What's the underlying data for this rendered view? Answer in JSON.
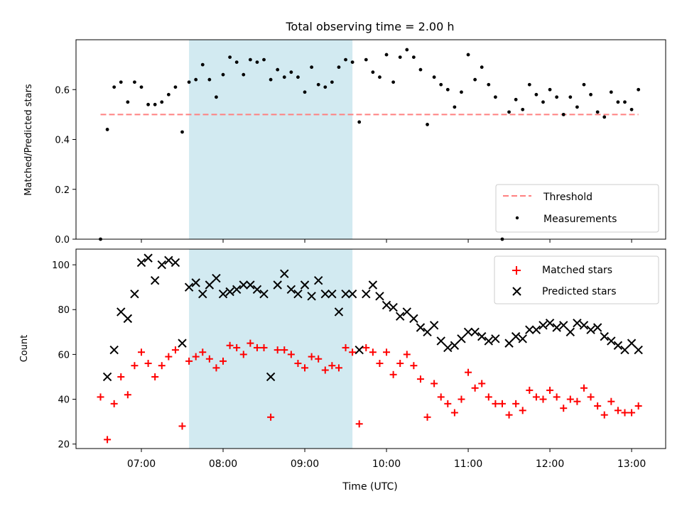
{
  "figure": {
    "title": "Total observing time = 2.00 h"
  },
  "chart_data": [
    {
      "type": "scatter",
      "panel": "top",
      "ylabel": "Matched/Predicted stars",
      "xlabel": "",
      "xlim": [
        "06:12",
        "13:25"
      ],
      "ylim": [
        0,
        0.8
      ],
      "yticks": [
        "0.0",
        "0.2",
        "0.4",
        "0.6"
      ],
      "ytick_values": [
        0.0,
        0.2,
        0.4,
        0.6
      ],
      "highlight_span": {
        "start": "07:35",
        "end": "09:35",
        "color": "#add8e6"
      },
      "threshold": {
        "name": "Threshold",
        "value": 0.5,
        "x_start": "06:30",
        "x_end": "13:05",
        "color": "#ff8080",
        "style": "dashed"
      },
      "legend": {
        "placement": "lower right",
        "entries": [
          "Threshold",
          "Measurements"
        ]
      },
      "series": [
        {
          "name": "Measurements",
          "marker": "dot",
          "color": "#000000",
          "points": [
            [
              "06:30",
              0.0
            ],
            [
              "06:35",
              0.44
            ],
            [
              "06:40",
              0.61
            ],
            [
              "06:45",
              0.63
            ],
            [
              "06:50",
              0.55
            ],
            [
              "06:55",
              0.63
            ],
            [
              "07:00",
              0.61
            ],
            [
              "07:05",
              0.54
            ],
            [
              "07:10",
              0.54
            ],
            [
              "07:15",
              0.55
            ],
            [
              "07:20",
              0.58
            ],
            [
              "07:25",
              0.61
            ],
            [
              "07:30",
              0.43
            ],
            [
              "07:35",
              0.63
            ],
            [
              "07:40",
              0.64
            ],
            [
              "07:45",
              0.7
            ],
            [
              "07:50",
              0.64
            ],
            [
              "07:55",
              0.57
            ],
            [
              "08:00",
              0.66
            ],
            [
              "08:05",
              0.73
            ],
            [
              "08:10",
              0.71
            ],
            [
              "08:15",
              0.66
            ],
            [
              "08:20",
              0.72
            ],
            [
              "08:25",
              0.71
            ],
            [
              "08:30",
              0.72
            ],
            [
              "08:35",
              0.64
            ],
            [
              "08:40",
              0.68
            ],
            [
              "08:45",
              0.65
            ],
            [
              "08:50",
              0.67
            ],
            [
              "08:55",
              0.65
            ],
            [
              "09:00",
              0.59
            ],
            [
              "09:05",
              0.69
            ],
            [
              "09:10",
              0.62
            ],
            [
              "09:15",
              0.61
            ],
            [
              "09:20",
              0.63
            ],
            [
              "09:25",
              0.69
            ],
            [
              "09:30",
              0.72
            ],
            [
              "09:35",
              0.71
            ],
            [
              "09:40",
              0.47
            ],
            [
              "09:45",
              0.72
            ],
            [
              "09:50",
              0.67
            ],
            [
              "09:55",
              0.65
            ],
            [
              "10:00",
              0.74
            ],
            [
              "10:05",
              0.63
            ],
            [
              "10:10",
              0.73
            ],
            [
              "10:15",
              0.76
            ],
            [
              "10:20",
              0.73
            ],
            [
              "10:25",
              0.68
            ],
            [
              "10:30",
              0.46
            ],
            [
              "10:35",
              0.65
            ],
            [
              "10:40",
              0.62
            ],
            [
              "10:45",
              0.6
            ],
            [
              "10:50",
              0.53
            ],
            [
              "10:55",
              0.59
            ],
            [
              "11:00",
              0.74
            ],
            [
              "11:05",
              0.64
            ],
            [
              "11:10",
              0.69
            ],
            [
              "11:15",
              0.62
            ],
            [
              "11:20",
              0.57
            ],
            [
              "11:25",
              0.0
            ],
            [
              "11:30",
              0.51
            ],
            [
              "11:35",
              0.56
            ],
            [
              "11:40",
              0.52
            ],
            [
              "11:45",
              0.62
            ],
            [
              "11:50",
              0.58
            ],
            [
              "11:55",
              0.55
            ],
            [
              "12:00",
              0.6
            ],
            [
              "12:05",
              0.57
            ],
            [
              "12:10",
              0.5
            ],
            [
              "12:15",
              0.57
            ],
            [
              "12:20",
              0.53
            ],
            [
              "12:25",
              0.62
            ],
            [
              "12:30",
              0.58
            ],
            [
              "12:35",
              0.51
            ],
            [
              "12:40",
              0.49
            ],
            [
              "12:45",
              0.59
            ],
            [
              "12:50",
              0.55
            ],
            [
              "12:55",
              0.55
            ],
            [
              "13:00",
              0.52
            ],
            [
              "13:05",
              0.6
            ]
          ]
        }
      ]
    },
    {
      "type": "scatter",
      "panel": "bottom",
      "ylabel": "Count",
      "xlabel": "Time (UTC)",
      "xlim": [
        "06:12",
        "13:25"
      ],
      "ylim": [
        18,
        107
      ],
      "yticks": [
        "20",
        "40",
        "60",
        "80",
        "100"
      ],
      "ytick_values": [
        20,
        40,
        60,
        80,
        100
      ],
      "xticks": [
        "07:00",
        "08:00",
        "09:00",
        "10:00",
        "11:00",
        "12:00",
        "13:00"
      ],
      "highlight_span": {
        "start": "07:35",
        "end": "09:35",
        "color": "#add8e6"
      },
      "legend": {
        "placement": "upper right",
        "entries": [
          "Matched stars",
          "Predicted stars"
        ]
      },
      "series": [
        {
          "name": "Matched stars",
          "marker": "plus",
          "color": "#ff0000",
          "points": [
            [
              "06:30",
              41
            ],
            [
              "06:35",
              22
            ],
            [
              "06:40",
              38
            ],
            [
              "06:45",
              50
            ],
            [
              "06:50",
              42
            ],
            [
              "06:55",
              55
            ],
            [
              "07:00",
              61
            ],
            [
              "07:05",
              56
            ],
            [
              "07:10",
              50
            ],
            [
              "07:15",
              55
            ],
            [
              "07:20",
              59
            ],
            [
              "07:25",
              62
            ],
            [
              "07:30",
              28
            ],
            [
              "07:35",
              57
            ],
            [
              "07:40",
              59
            ],
            [
              "07:45",
              61
            ],
            [
              "07:50",
              58
            ],
            [
              "07:55",
              54
            ],
            [
              "08:00",
              57
            ],
            [
              "08:05",
              64
            ],
            [
              "08:10",
              63
            ],
            [
              "08:15",
              60
            ],
            [
              "08:20",
              65
            ],
            [
              "08:25",
              63
            ],
            [
              "08:30",
              63
            ],
            [
              "08:35",
              32
            ],
            [
              "08:40",
              62
            ],
            [
              "08:45",
              62
            ],
            [
              "08:50",
              60
            ],
            [
              "08:55",
              56
            ],
            [
              "09:00",
              54
            ],
            [
              "09:05",
              59
            ],
            [
              "09:10",
              58
            ],
            [
              "09:15",
              53
            ],
            [
              "09:20",
              55
            ],
            [
              "09:25",
              54
            ],
            [
              "09:30",
              63
            ],
            [
              "09:35",
              61
            ],
            [
              "09:40",
              29
            ],
            [
              "09:45",
              63
            ],
            [
              "09:50",
              61
            ],
            [
              "09:55",
              56
            ],
            [
              "10:00",
              61
            ],
            [
              "10:05",
              51
            ],
            [
              "10:10",
              56
            ],
            [
              "10:15",
              60
            ],
            [
              "10:20",
              55
            ],
            [
              "10:25",
              49
            ],
            [
              "10:30",
              32
            ],
            [
              "10:35",
              47
            ],
            [
              "10:40",
              41
            ],
            [
              "10:45",
              38
            ],
            [
              "10:50",
              34
            ],
            [
              "10:55",
              40
            ],
            [
              "11:00",
              52
            ],
            [
              "11:05",
              45
            ],
            [
              "11:10",
              47
            ],
            [
              "11:15",
              41
            ],
            [
              "11:20",
              38
            ],
            [
              "11:25",
              38
            ],
            [
              "11:30",
              33
            ],
            [
              "11:35",
              38
            ],
            [
              "11:40",
              35
            ],
            [
              "11:45",
              44
            ],
            [
              "11:50",
              41
            ],
            [
              "11:55",
              40
            ],
            [
              "12:00",
              44
            ],
            [
              "12:05",
              41
            ],
            [
              "12:10",
              36
            ],
            [
              "12:15",
              40
            ],
            [
              "12:20",
              39
            ],
            [
              "12:25",
              45
            ],
            [
              "12:30",
              41
            ],
            [
              "12:35",
              37
            ],
            [
              "12:40",
              33
            ],
            [
              "12:45",
              39
            ],
            [
              "12:50",
              35
            ],
            [
              "12:55",
              34
            ],
            [
              "13:00",
              34
            ],
            [
              "13:05",
              37
            ]
          ]
        },
        {
          "name": "Predicted stars",
          "marker": "x",
          "color": "#000000",
          "points": [
            [
              "06:35",
              50
            ],
            [
              "06:40",
              62
            ],
            [
              "06:45",
              79
            ],
            [
              "06:50",
              76
            ],
            [
              "06:55",
              87
            ],
            [
              "07:00",
              101
            ],
            [
              "07:05",
              103
            ],
            [
              "07:10",
              93
            ],
            [
              "07:15",
              100
            ],
            [
              "07:20",
              102
            ],
            [
              "07:25",
              101
            ],
            [
              "07:30",
              65
            ],
            [
              "07:35",
              90
            ],
            [
              "07:40",
              92
            ],
            [
              "07:45",
              87
            ],
            [
              "07:50",
              91
            ],
            [
              "07:55",
              94
            ],
            [
              "08:00",
              87
            ],
            [
              "08:05",
              88
            ],
            [
              "08:10",
              89
            ],
            [
              "08:15",
              91
            ],
            [
              "08:20",
              91
            ],
            [
              "08:25",
              89
            ],
            [
              "08:30",
              87
            ],
            [
              "08:35",
              50
            ],
            [
              "08:40",
              91
            ],
            [
              "08:45",
              96
            ],
            [
              "08:50",
              89
            ],
            [
              "08:55",
              87
            ],
            [
              "09:00",
              91
            ],
            [
              "09:05",
              86
            ],
            [
              "09:10",
              93
            ],
            [
              "09:15",
              87
            ],
            [
              "09:20",
              87
            ],
            [
              "09:25",
              79
            ],
            [
              "09:30",
              87
            ],
            [
              "09:35",
              87
            ],
            [
              "09:40",
              62
            ],
            [
              "09:45",
              87
            ],
            [
              "09:50",
              91
            ],
            [
              "09:55",
              86
            ],
            [
              "10:00",
              82
            ],
            [
              "10:05",
              81
            ],
            [
              "10:10",
              77
            ],
            [
              "10:15",
              79
            ],
            [
              "10:20",
              76
            ],
            [
              "10:25",
              72
            ],
            [
              "10:30",
              70
            ],
            [
              "10:35",
              73
            ],
            [
              "10:40",
              66
            ],
            [
              "10:45",
              63
            ],
            [
              "10:50",
              64
            ],
            [
              "10:55",
              67
            ],
            [
              "11:00",
              70
            ],
            [
              "11:05",
              70
            ],
            [
              "11:10",
              68
            ],
            [
              "11:15",
              66
            ],
            [
              "11:20",
              67
            ],
            [
              "11:30",
              65
            ],
            [
              "11:35",
              68
            ],
            [
              "11:40",
              67
            ],
            [
              "11:45",
              71
            ],
            [
              "11:50",
              71
            ],
            [
              "11:55",
              73
            ],
            [
              "12:00",
              74
            ],
            [
              "12:05",
              72
            ],
            [
              "12:10",
              73
            ],
            [
              "12:15",
              70
            ],
            [
              "12:20",
              74
            ],
            [
              "12:25",
              73
            ],
            [
              "12:30",
              71
            ],
            [
              "12:35",
              72
            ],
            [
              "12:40",
              68
            ],
            [
              "12:45",
              66
            ],
            [
              "12:50",
              64
            ],
            [
              "12:55",
              62
            ],
            [
              "13:00",
              65
            ],
            [
              "13:05",
              62
            ]
          ]
        }
      ]
    }
  ]
}
